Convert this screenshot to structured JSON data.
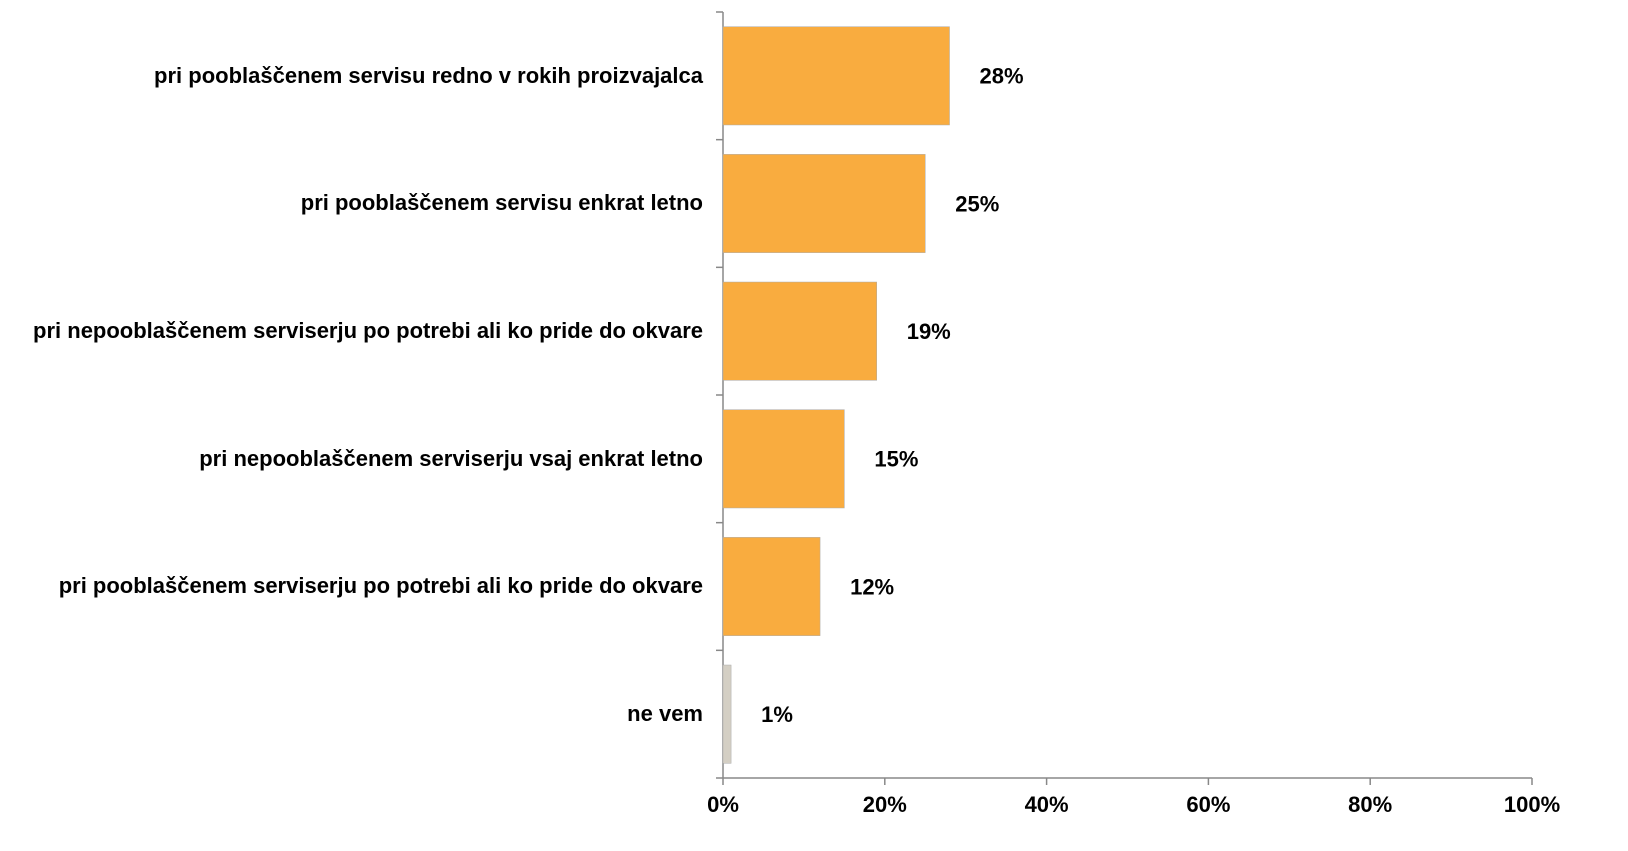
{
  "chart_data": {
    "type": "barh",
    "categories": [
      "pri pooblaščenem servisu redno v rokih proizvajalca",
      "pri pooblaščenem servisu enkrat letno",
      "pri nepooblaščenem serviserju po potrebi ali ko pride do okvare",
      "pri nepooblaščenem serviserju vsaj enkrat letno",
      "pri pooblaščenem serviserju po potrebi ali ko pride do okvare",
      "ne vem"
    ],
    "values": [
      28,
      25,
      19,
      15,
      12,
      1
    ],
    "value_labels": [
      "28%",
      "25%",
      "19%",
      "15%",
      "12%",
      "1%"
    ],
    "colors": [
      "#f9ac3f",
      "#f9ac3f",
      "#f9ac3f",
      "#f9ac3f",
      "#f9ac3f",
      "#d4cfc4"
    ],
    "xlim": [
      0,
      100
    ],
    "xticks": [
      {
        "value": 0,
        "label": "0%"
      },
      {
        "value": 20,
        "label": "20%"
      },
      {
        "value": 40,
        "label": "40%"
      },
      {
        "value": 60,
        "label": "60%"
      },
      {
        "value": 80,
        "label": "80%"
      },
      {
        "value": 100,
        "label": "100%"
      }
    ],
    "grid": false
  }
}
